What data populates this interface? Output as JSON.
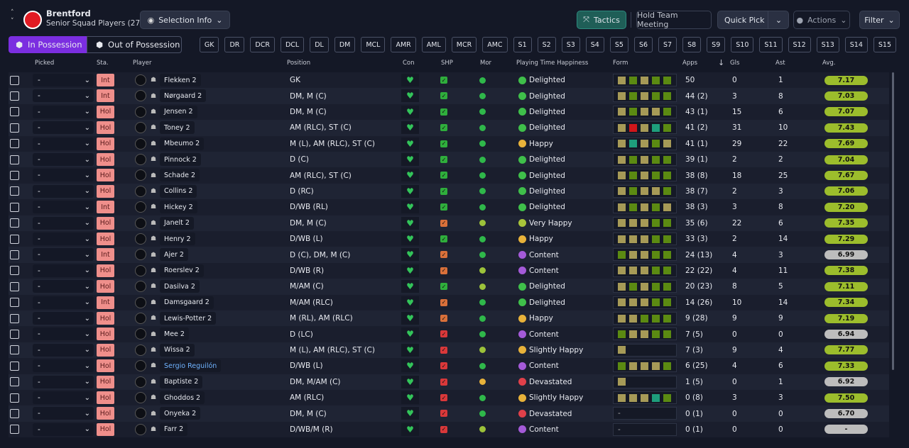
{
  "header": {
    "team": "Brentford",
    "squad": "Senior Squad Players (27)",
    "selection_info": "Selection Info",
    "buttons": [
      "Tactics",
      "Hold Team Meeting",
      "Quick Pick",
      "Actions",
      "Filter"
    ]
  },
  "tabs": [
    "In Possession",
    "Out of Possession"
  ],
  "positions": [
    "GK",
    "DR",
    "DCR",
    "DCL",
    "DL",
    "DM",
    "MCL",
    "AMR",
    "AML",
    "MCR",
    "AMC",
    "S1",
    "S2",
    "S3",
    "S4",
    "S5",
    "S6",
    "S7",
    "S8",
    "S9",
    "S10",
    "S11",
    "S12",
    "S13",
    "S14",
    "S15"
  ],
  "columns": [
    "Picked",
    "Sta.",
    "Player",
    "Position",
    "Con",
    "SHP",
    "Mor",
    "Playing Time Happiness",
    "Form",
    "Apps",
    "Gls",
    "Ast",
    "Avg."
  ],
  "rows": [
    {
      "picked": "-",
      "status": "Int",
      "player": "Flekken 2",
      "position": "GK",
      "happiness": "Delighted",
      "mood_color": "#3fbf4a",
      "shp_color": "#2fae3c",
      "mor_color": "#2fb84a",
      "form": [
        "#a69a57",
        "#5b8a12",
        "#a69a57",
        "#5b8a12",
        "#5b8a12"
      ],
      "apps": "50",
      "gls": 0,
      "ast": 1,
      "avg": "7.17",
      "avg_color": "#9cbd2c"
    },
    {
      "picked": "-",
      "status": "Int",
      "player": "Nørgaard 2",
      "position": "DM, M (C)",
      "happiness": "Delighted",
      "mood_color": "#3fbf4a",
      "shp_color": "#2fae3c",
      "mor_color": "#2fb84a",
      "form": [
        "#a69a57",
        "#5b8a12",
        "#a69a57",
        "#5b8a12",
        "#5b8a12"
      ],
      "apps": "44 (2)",
      "gls": 3,
      "ast": 8,
      "avg": "7.03",
      "avg_color": "#9cbd2c"
    },
    {
      "picked": "-",
      "status": "Hol",
      "player": "Jensen 2",
      "position": "DM, M (C)",
      "happiness": "Delighted",
      "mood_color": "#3fbf4a",
      "shp_color": "#2fae3c",
      "mor_color": "#2fb84a",
      "form": [
        "#a69a57",
        "#5b8a12",
        "#a69a57",
        "#a69a57",
        "#5b8a12"
      ],
      "apps": "43 (1)",
      "gls": 15,
      "ast": 6,
      "avg": "7.07",
      "avg_color": "#9cbd2c"
    },
    {
      "picked": "-",
      "status": "Hol",
      "player": "Toney 2",
      "position": "AM (RLC), ST (C)",
      "happiness": "Delighted",
      "mood_color": "#3fbf4a",
      "shp_color": "#2fae3c",
      "mor_color": "#2fb84a",
      "form": [
        "#a69a57",
        "#d0161a",
        "#a69a57",
        "#1e9e7c",
        "#5b8a12"
      ],
      "apps": "41 (2)",
      "gls": 31,
      "ast": 10,
      "avg": "7.43",
      "avg_color": "#9cbd2c"
    },
    {
      "picked": "-",
      "status": "Hol",
      "player": "Mbeumo 2",
      "position": "M (L), AM (RLC), ST (C)",
      "happiness": "Happy",
      "mood_color": "#e8b23a",
      "shp_color": "#2fae3c",
      "mor_color": "#2fb84a",
      "form": [
        "#a69a57",
        "#1e9e7c",
        "#a69a57",
        "#5b8a12",
        "#a69a57"
      ],
      "apps": "41 (1)",
      "gls": 29,
      "ast": 22,
      "avg": "7.69",
      "avg_color": "#9cbd2c"
    },
    {
      "picked": "-",
      "status": "Hol",
      "player": "Pinnock 2",
      "position": "D (C)",
      "happiness": "Delighted",
      "mood_color": "#3fbf4a",
      "shp_color": "#2fae3c",
      "mor_color": "#2fb84a",
      "form": [
        "#a69a57",
        "#5b8a12",
        "#a69a57",
        "#5b8a12",
        "#5b8a12"
      ],
      "apps": "39 (1)",
      "gls": 2,
      "ast": 2,
      "avg": "7.04",
      "avg_color": "#9cbd2c"
    },
    {
      "picked": "-",
      "status": "Hol",
      "player": "Schade 2",
      "position": "AM (RLC), ST (C)",
      "happiness": "Delighted",
      "mood_color": "#3fbf4a",
      "shp_color": "#2fae3c",
      "mor_color": "#2fb84a",
      "form": [
        "#a69a57",
        "#5b8a12",
        "#a69a57",
        "#5b8a12",
        "#5b8a12"
      ],
      "apps": "38 (8)",
      "gls": 18,
      "ast": 25,
      "avg": "7.67",
      "avg_color": "#9cbd2c"
    },
    {
      "picked": "-",
      "status": "Hol",
      "player": "Collins 2",
      "position": "D (RC)",
      "happiness": "Delighted",
      "mood_color": "#3fbf4a",
      "shp_color": "#2fae3c",
      "mor_color": "#2fb84a",
      "form": [
        "#a69a57",
        "#5b8a12",
        "#a69a57",
        "#a69a57",
        "#5b8a12"
      ],
      "apps": "38 (7)",
      "gls": 2,
      "ast": 3,
      "avg": "7.06",
      "avg_color": "#9cbd2c"
    },
    {
      "picked": "-",
      "status": "Int",
      "player": "Hickey 2",
      "position": "D/WB (RL)",
      "happiness": "Delighted",
      "mood_color": "#3fbf4a",
      "shp_color": "#2fae3c",
      "mor_color": "#2fb84a",
      "form": [
        "#a69a57",
        "#5b8a12",
        "#a69a57",
        "#5b8a12",
        "#a69a57"
      ],
      "apps": "38 (3)",
      "gls": 3,
      "ast": 8,
      "avg": "7.20",
      "avg_color": "#9cbd2c"
    },
    {
      "picked": "-",
      "status": "Hol",
      "player": "Janelt 2",
      "position": "DM, M (C)",
      "happiness": "Very Happy",
      "mood_color": "#a8c43a",
      "shp_color": "#d9703a",
      "mor_color": "#9cc23a",
      "form": [
        "#a69a57",
        "#a69a57",
        "#a69a57",
        "#5b8a12",
        "#5b8a12"
      ],
      "apps": "35 (6)",
      "gls": 22,
      "ast": 6,
      "avg": "7.35",
      "avg_color": "#9cbd2c"
    },
    {
      "picked": "-",
      "status": "Hol",
      "player": "Henry 2",
      "position": "D/WB (L)",
      "happiness": "Happy",
      "mood_color": "#e8b23a",
      "shp_color": "#2fae3c",
      "mor_color": "#2fb84a",
      "form": [
        "#a69a57",
        "#a69a57",
        "#a69a57",
        "#5b8a12",
        "#5b8a12"
      ],
      "apps": "33 (3)",
      "gls": 2,
      "ast": 14,
      "avg": "7.29",
      "avg_color": "#9cbd2c"
    },
    {
      "picked": "-",
      "status": "Int",
      "player": "Ajer 2",
      "position": "D (C), DM, M (C)",
      "happiness": "Content",
      "mood_color": "#a45ad8",
      "shp_color": "#d9703a",
      "mor_color": "#2fb84a",
      "form": [
        "#5b8a12",
        "#a69a57",
        "#a69a57",
        "#5b8a12",
        "#5b8a12"
      ],
      "apps": "24 (13)",
      "gls": 4,
      "ast": 3,
      "avg": "6.99",
      "avg_color": "#bdbdbd"
    },
    {
      "picked": "-",
      "status": "Hol",
      "player": "Roerslev 2",
      "position": "D/WB (R)",
      "happiness": "Content",
      "mood_color": "#a45ad8",
      "shp_color": "#d9703a",
      "mor_color": "#9cc23a",
      "form": [
        "#a69a57",
        "#a69a57",
        "#a69a57",
        "#5b8a12",
        "#5b8a12"
      ],
      "apps": "22 (22)",
      "gls": 4,
      "ast": 11,
      "avg": "7.38",
      "avg_color": "#9cbd2c"
    },
    {
      "picked": "-",
      "status": "Hol",
      "player": "Dasilva 2",
      "position": "M/AM (C)",
      "happiness": "Delighted",
      "mood_color": "#3fbf4a",
      "shp_color": "#2fae3c",
      "mor_color": "#9cc23a",
      "form": [
        "#a69a57",
        "#5b8a12",
        "#a69a57",
        "#5b8a12",
        "#5b8a12"
      ],
      "apps": "20 (23)",
      "gls": 8,
      "ast": 5,
      "avg": "7.11",
      "avg_color": "#9cbd2c"
    },
    {
      "picked": "-",
      "status": "Int",
      "player": "Damsgaard 2",
      "position": "M/AM (RLC)",
      "happiness": "Delighted",
      "mood_color": "#3fbf4a",
      "shp_color": "#d9703a",
      "mor_color": "#2fb84a",
      "form": [
        "#a69a57",
        "#a69a57",
        "#a69a57",
        "#5b8a12",
        "#5b8a12"
      ],
      "apps": "14 (26)",
      "gls": 10,
      "ast": 14,
      "avg": "7.34",
      "avg_color": "#9cbd2c"
    },
    {
      "picked": "-",
      "status": "Hol",
      "player": "Lewis-Potter 2",
      "position": "M (RL), AM (RLC)",
      "happiness": "Happy",
      "mood_color": "#e8b23a",
      "shp_color": "#d9703a",
      "mor_color": "#2fb84a",
      "form": [
        "#a69a57",
        "#a69a57",
        "#5b8a12",
        "#5b8a12",
        "#5b8a12"
      ],
      "apps": "9 (28)",
      "gls": 9,
      "ast": 9,
      "avg": "7.19",
      "avg_color": "#9cbd2c"
    },
    {
      "picked": "-",
      "status": "Hol",
      "player": "Mee 2",
      "position": "D (LC)",
      "happiness": "Content",
      "mood_color": "#a45ad8",
      "shp_color": "#d9383a",
      "mor_color": "#2fb84a",
      "form": [
        "#5b8a12",
        "#a69a57",
        "#a69a57",
        "#5b8a12",
        "#5b8a12"
      ],
      "apps": "7 (5)",
      "gls": 0,
      "ast": 0,
      "avg": "6.94",
      "avg_color": "#bdbdbd"
    },
    {
      "picked": "-",
      "status": "Hol",
      "player": "Wissa 2",
      "position": "M (L), AM (RLC), ST (C)",
      "happiness": "Slightly Happy",
      "mood_color": "#e8b23a",
      "shp_color": "#d9383a",
      "mor_color": "#9cc23a",
      "form": [
        "#a69a57"
      ],
      "apps": "7 (3)",
      "gls": 9,
      "ast": 4,
      "avg": "7.77",
      "avg_color": "#9cbd2c"
    },
    {
      "picked": "-",
      "status": "Hol",
      "player": "Sergio Reguilón",
      "name_color": "#6fb3ff",
      "position": "D/WB (L)",
      "happiness": "Content",
      "mood_color": "#a45ad8",
      "shp_color": "#d9383a",
      "mor_color": "#2fb84a",
      "form": [
        "#5b8a12",
        "#a69a57",
        "#a69a57",
        "#a69a57",
        "#5b8a12"
      ],
      "apps": "6 (25)",
      "gls": 4,
      "ast": 6,
      "avg": "7.33",
      "avg_color": "#9cbd2c"
    },
    {
      "picked": "-",
      "status": "Hol",
      "player": "Baptiste 2",
      "position": "DM, M/AM (C)",
      "happiness": "Devastated",
      "mood_color": "#e0404a",
      "shp_color": "#d9383a",
      "mor_color": "#e8b23a",
      "form": [
        "#a69a57"
      ],
      "apps": "1 (5)",
      "gls": 0,
      "ast": 1,
      "avg": "6.92",
      "avg_color": "#bdbdbd"
    },
    {
      "picked": "-",
      "status": "Hol",
      "player": "Ghoddos 2",
      "position": "AM (RLC)",
      "happiness": "Slightly Happy",
      "mood_color": "#e8b23a",
      "shp_color": "#d9383a",
      "mor_color": "#2fb84a",
      "form": [
        "#a69a57",
        "#a69a57",
        "#a69a57",
        "#1e9e7c",
        "#5b8a12"
      ],
      "apps": "0 (8)",
      "gls": 3,
      "ast": 3,
      "avg": "7.50",
      "avg_color": "#9cbd2c"
    },
    {
      "picked": "-",
      "status": "Hol",
      "player": "Onyeka 2",
      "position": "DM, M (C)",
      "happiness": "Devastated",
      "mood_color": "#e0404a",
      "shp_color": "#d9383a",
      "mor_color": "#2fb84a",
      "form": "-",
      "apps": "0 (1)",
      "gls": 0,
      "ast": 0,
      "avg": "6.70",
      "avg_color": "#bdbdbd"
    },
    {
      "picked": "-",
      "status": "Hol",
      "player": "Farr 2",
      "position": "D/WB/M (R)",
      "happiness": "Content",
      "mood_color": "#a45ad8",
      "shp_color": "#d9383a",
      "mor_color": "#9cc23a",
      "form": "-",
      "apps": "0 (1)",
      "gls": 0,
      "ast": 0,
      "avg": "-",
      "avg_color": "#bdbdbd"
    }
  ]
}
